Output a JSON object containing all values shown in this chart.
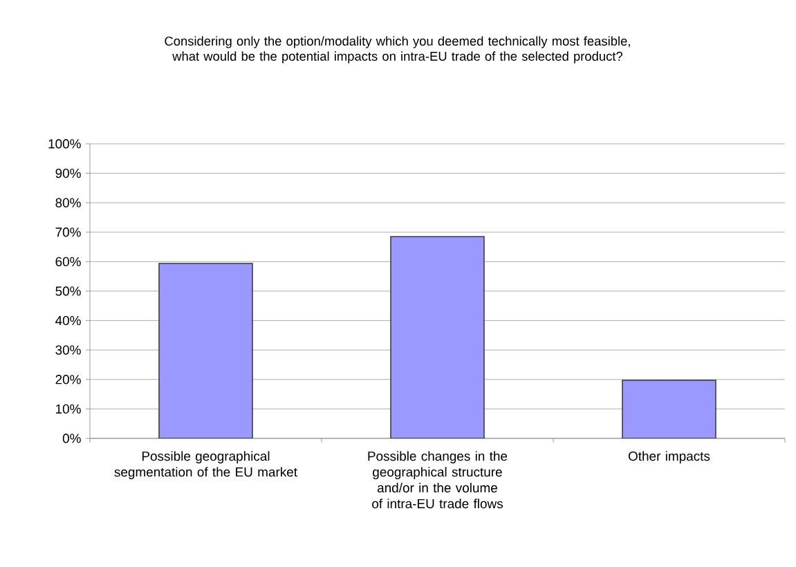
{
  "chart_data": {
    "type": "bar",
    "title": "Considering only the option/modality which you deemed technically most feasible, what would be the potential impacts on intra-EU trade of the selected product?",
    "categories": [
      "Possible geographical segmentation of the EU market",
      "Possible changes in the geographical structure and/or in the volume of intra-EU trade flows",
      "Other impacts"
    ],
    "values": [
      59.4,
      68.5,
      19.7
    ],
    "color": "#9999ff",
    "ylim": [
      0,
      100
    ],
    "yticks": [
      {
        "value": 0,
        "label": "0%"
      },
      {
        "value": 10,
        "label": "10%"
      },
      {
        "value": 20,
        "label": "20%"
      },
      {
        "value": 30,
        "label": "30%"
      },
      {
        "value": 40,
        "label": "40%"
      },
      {
        "value": 50,
        "label": "50%"
      },
      {
        "value": 60,
        "label": "60%"
      },
      {
        "value": 70,
        "label": "70%"
      },
      {
        "value": 80,
        "label": "80%"
      },
      {
        "value": 90,
        "label": "90%"
      },
      {
        "value": 100,
        "label": "100%"
      }
    ],
    "grid": "y"
  }
}
